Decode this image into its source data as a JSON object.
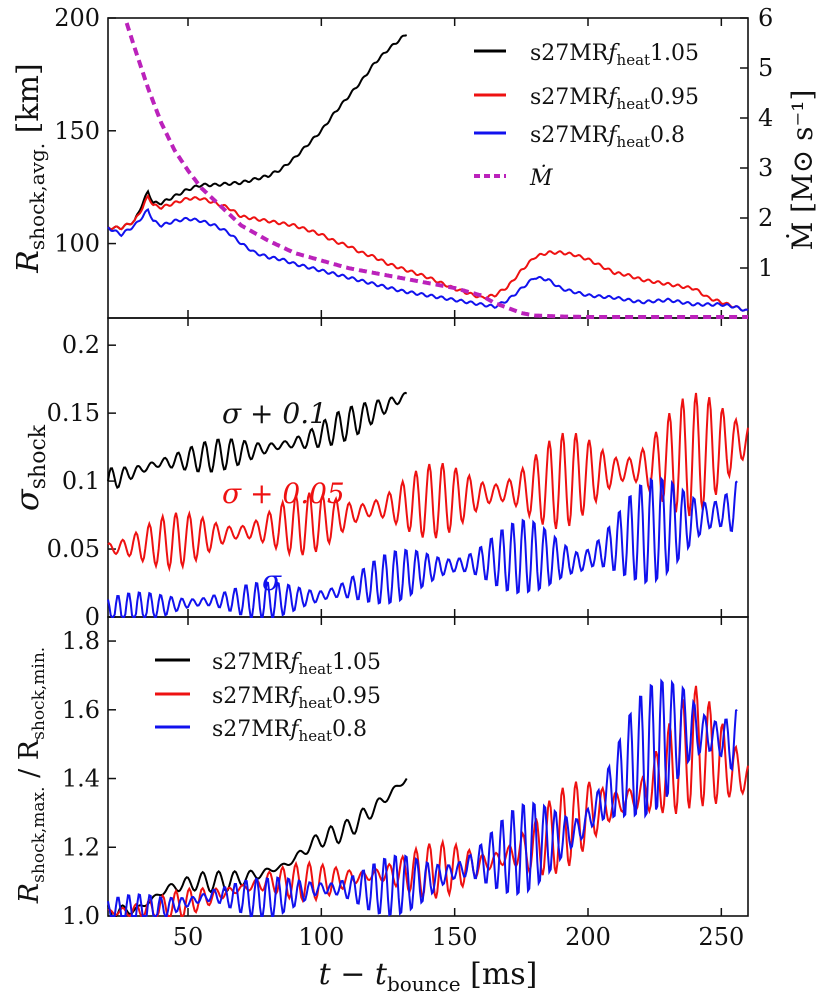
{
  "colors": {
    "black": "#000000",
    "red": "#ee1111",
    "blue": "#1111ee",
    "magenta": "#bb22bb"
  },
  "xaxis": {
    "label": "t − t",
    "label_sub": "bounce",
    "label_unit": " [ms]",
    "ticks": [
      50,
      100,
      150,
      200,
      250
    ],
    "xlim": [
      20,
      260
    ]
  },
  "chart_data": [
    {
      "type": "line",
      "panel": "top",
      "ylabel": "R",
      "ylabel_sub": "shock,avg.",
      "ylabel_unit": " [km]",
      "ylim": [
        67,
        200
      ],
      "yticks": [
        100,
        150,
        200
      ],
      "y2label": "Ṁ [M⊙ s⁻¹]",
      "y2lim": [
        0.0,
        6.0
      ],
      "y2ticks": [
        1,
        2,
        3,
        4,
        5,
        6
      ],
      "legend_position": "top-right",
      "legend": [
        {
          "label": "s27MRfheat1.05",
          "main": "s27MR",
          "f": "f",
          "sub": "heat",
          "tail": "1.05",
          "color": "#000000"
        },
        {
          "label": "s27MRfheat0.95",
          "main": "s27MR",
          "f": "f",
          "sub": "heat",
          "tail": "0.95",
          "color": "#ee1111"
        },
        {
          "label": "s27MRfheat0.8",
          "main": "s27MR",
          "f": "f",
          "sub": "heat",
          "tail": "0.8",
          "color": "#1111ee"
        },
        {
          "label": "Ṁ",
          "main": "Ṁ",
          "color": "#bb22bb",
          "dashed": true
        }
      ],
      "series": [
        {
          "name": "s27MRfheat1.05",
          "color": "#000000",
          "x": [
            20,
            25,
            30,
            33,
            35,
            37,
            40,
            45,
            50,
            55,
            60,
            70,
            80,
            85,
            90,
            95,
            100,
            105,
            110,
            115,
            120,
            125,
            130,
            132
          ],
          "y": [
            107,
            107,
            110,
            118,
            123,
            118,
            118,
            121,
            124,
            126,
            126,
            127,
            130,
            133,
            138,
            144,
            150,
            158,
            165,
            172,
            180,
            186,
            191,
            193
          ]
        },
        {
          "name": "s27MRfheat0.95",
          "color": "#ee1111",
          "x": [
            20,
            25,
            30,
            33,
            35,
            37,
            40,
            45,
            50,
            55,
            60,
            65,
            70,
            80,
            90,
            95,
            100,
            105,
            110,
            115,
            120,
            125,
            130,
            140,
            150,
            155,
            160,
            165,
            170,
            175,
            180,
            185,
            190,
            195,
            200,
            205,
            210,
            215,
            220,
            230,
            240,
            245,
            250,
            255,
            260
          ],
          "y": [
            107,
            107,
            110,
            116,
            121,
            117,
            116,
            118,
            120,
            120,
            118,
            116,
            112,
            110,
            108,
            106,
            104,
            101,
            99,
            96,
            94,
            91,
            89,
            85,
            80,
            78,
            76,
            77,
            81,
            88,
            94,
            96,
            96,
            95,
            93,
            90,
            87,
            86,
            84,
            82,
            80,
            76,
            74,
            72,
            70
          ]
        },
        {
          "name": "s27MRfheat0.8",
          "color": "#1111ee",
          "x": [
            20,
            25,
            30,
            33,
            35,
            37,
            40,
            45,
            50,
            55,
            60,
            65,
            70,
            75,
            80,
            85,
            90,
            100,
            110,
            120,
            130,
            140,
            150,
            160,
            165,
            170,
            175,
            180,
            185,
            190,
            200,
            210,
            220,
            230,
            240,
            250,
            255,
            260
          ],
          "y": [
            107,
            104,
            108,
            112,
            115,
            110,
            108,
            110,
            111,
            110,
            108,
            105,
            100,
            96,
            94,
            93,
            91,
            88,
            85,
            82,
            79,
            77,
            75,
            73,
            72,
            75,
            80,
            85,
            84,
            80,
            77,
            76,
            74,
            75,
            73,
            73,
            72,
            70
          ]
        },
        {
          "name": "Ṁ",
          "color": "#bb22bb",
          "dashed": true,
          "axis": "y2",
          "x": [
            27,
            30,
            35,
            40,
            45,
            50,
            55,
            60,
            65,
            70,
            80,
            90,
            100,
            110,
            120,
            130,
            140,
            150,
            160,
            165,
            170,
            175,
            180,
            190,
            200,
            220,
            260
          ],
          "y": [
            5.9,
            5.4,
            4.6,
            3.9,
            3.35,
            2.95,
            2.6,
            2.35,
            2.1,
            1.85,
            1.55,
            1.3,
            1.15,
            1.0,
            0.9,
            0.8,
            0.7,
            0.6,
            0.45,
            0.3,
            0.2,
            0.1,
            0.05,
            0.03,
            0.02,
            0.02,
            0.02
          ]
        }
      ]
    },
    {
      "type": "line",
      "panel": "middle",
      "ylabel": "σ",
      "ylabel_sub": "shock",
      "ylim": [
        0.0,
        0.22
      ],
      "yticks": [
        0,
        0.05,
        0.1,
        0.15,
        0.2
      ],
      "ytick_labels": [
        "0",
        "0.05",
        "0.1",
        "0.15",
        "0.2"
      ],
      "annotations": [
        {
          "text": "σ + 0.1",
          "color": "#111111"
        },
        {
          "text": "σ + 0.05",
          "color": "#ee1111"
        },
        {
          "text": "σ",
          "color": "#1111ee"
        }
      ],
      "series": [
        {
          "name": "",
          "color": "#000000",
          "x_range": [
            20,
            132
          ],
          "y_base": [
            0.1,
            0.113,
            0.118,
            0.123,
            0.13,
            0.145,
            0.163
          ],
          "osc_amp": 0.012,
          "period_ms": 5
        },
        {
          "name": "",
          "color": "#ee1111",
          "x_range": [
            20,
            260
          ],
          "y_base": [
            0.05,
            0.055,
            0.06,
            0.065,
            0.07,
            0.08,
            0.085,
            0.09,
            0.095,
            0.105,
            0.11,
            0.12,
            0.13
          ],
          "osc_amp": 0.02,
          "osc_amp_end": 0.05,
          "period_ms": 5
        },
        {
          "name": "",
          "color": "#1111ee",
          "x_range": [
            20,
            256
          ],
          "y_base": [
            0.005,
            0.008,
            0.012,
            0.012,
            0.015,
            0.025,
            0.035,
            0.04,
            0.045,
            0.04,
            0.06,
            0.07,
            0.08
          ],
          "osc_amp": 0.012,
          "osc_amp_end": 0.05,
          "period_ms": 4
        }
      ]
    },
    {
      "type": "line",
      "panel": "bottom",
      "ylabel": "R",
      "ylabel_sub1": "shock,max.",
      "ylabel_mid": " / R",
      "ylabel_sub2": "shock,min.",
      "ylim": [
        1.0,
        1.87
      ],
      "yticks": [
        1.0,
        1.2,
        1.4,
        1.6,
        1.8
      ],
      "ytick_labels": [
        "1.0",
        "1.2",
        "1.4",
        "1.6",
        "1.8"
      ],
      "legend_position": "top-left",
      "legend": [
        {
          "label": "s27MRfheat1.05",
          "main": "s27MR",
          "f": "f",
          "sub": "heat",
          "tail": "1.05",
          "color": "#000000"
        },
        {
          "label": "s27MRfheat0.95",
          "main": "s27MR",
          "f": "f",
          "sub": "heat",
          "tail": "0.95",
          "color": "#ee1111"
        },
        {
          "label": "s27MRfheat0.8",
          "main": "s27MR",
          "f": "f",
          "sub": "heat",
          "tail": "0.8",
          "color": "#1111ee"
        }
      ],
      "series": [
        {
          "name": "s27MRfheat1.05",
          "color": "#000000",
          "x_range": [
            20,
            132
          ],
          "y_base": [
            1.01,
            1.02,
            1.08,
            1.1,
            1.1,
            1.12,
            1.15,
            1.22,
            1.25,
            1.32,
            1.4
          ],
          "osc_amp": 0.03,
          "period_ms": 6
        },
        {
          "name": "s27MRfheat0.95",
          "color": "#ee1111",
          "x_range": [
            20,
            260
          ],
          "y_base": [
            1.01,
            1.02,
            1.06,
            1.1,
            1.1,
            1.12,
            1.13,
            1.15,
            1.2,
            1.3,
            1.35,
            1.5,
            1.4
          ],
          "osc_amp": 0.04,
          "osc_amp_end": 0.2,
          "period_ms": 5
        },
        {
          "name": "s27MRfheat0.8",
          "color": "#1111ee",
          "x_range": [
            20,
            256
          ],
          "y_base": [
            1.01,
            1.02,
            1.06,
            1.05,
            1.08,
            1.08,
            1.1,
            1.15,
            1.2,
            1.25,
            1.45,
            1.55,
            1.5
          ],
          "osc_amp": 0.05,
          "osc_amp_end": 0.25,
          "period_ms": 4
        }
      ]
    }
  ]
}
